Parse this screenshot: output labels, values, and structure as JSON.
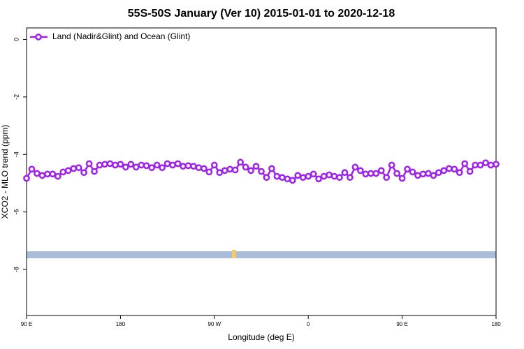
{
  "chart_data": {
    "type": "line",
    "title": "55S-50S January (Ver 10)   2015-01-01 to 2020-12-18",
    "xlabel": "Longitude (deg E)",
    "ylabel": "XCO2 - MLO trend (ppm)",
    "x": [
      90,
      95,
      100,
      105,
      110,
      115,
      120,
      125,
      130,
      135,
      140,
      145,
      150,
      155,
      160,
      165,
      170,
      175,
      180,
      185,
      190,
      195,
      200,
      205,
      210,
      215,
      220,
      225,
      230,
      235,
      240,
      245,
      250,
      255,
      260,
      265,
      270,
      275,
      280,
      285,
      290,
      295,
      300,
      305,
      310,
      315,
      320,
      325,
      330,
      335,
      340,
      345,
      350,
      355,
      360,
      365,
      370,
      375,
      380,
      385,
      390,
      395,
      400,
      405,
      410,
      415,
      420,
      425,
      430,
      435,
      440,
      445,
      450,
      455,
      460,
      465,
      470,
      475,
      480,
      485,
      490,
      495,
      500,
      505,
      510,
      515,
      520,
      525,
      530,
      535,
      540
    ],
    "series": [
      {
        "name": "Land (Nadir&Glint) and Ocean (Glint)",
        "color": "#a020f0",
        "values": [
          -4.83,
          -4.51,
          -4.66,
          -4.73,
          -4.68,
          -4.68,
          -4.76,
          -4.61,
          -4.56,
          -4.49,
          -4.46,
          -4.63,
          -4.32,
          -4.59,
          -4.37,
          -4.34,
          -4.32,
          -4.37,
          -4.34,
          -4.44,
          -4.34,
          -4.44,
          -4.37,
          -4.39,
          -4.46,
          -4.37,
          -4.46,
          -4.32,
          -4.37,
          -4.32,
          -4.41,
          -4.39,
          -4.41,
          -4.46,
          -4.49,
          -4.61,
          -4.37,
          -4.63,
          -4.56,
          -4.51,
          -4.54,
          -4.27,
          -4.44,
          -4.56,
          -4.41,
          -4.59,
          -4.8,
          -4.49,
          -4.76,
          -4.8,
          -4.85,
          -4.9,
          -4.73,
          -4.8,
          -4.76,
          -4.68,
          -4.85,
          -4.76,
          -4.71,
          -4.76,
          -4.8,
          -4.63,
          -4.8,
          -4.44,
          -4.56,
          -4.68,
          -4.66,
          -4.66,
          -4.56,
          -4.8,
          -4.37,
          -4.66,
          -4.83,
          -4.51,
          -4.61,
          -4.73,
          -4.68,
          -4.66,
          -4.73,
          -4.63,
          -4.56,
          -4.49,
          -4.51,
          -4.63,
          -4.32,
          -4.59,
          -4.37,
          -4.37,
          -4.29,
          -4.37,
          -4.34
        ]
      }
    ],
    "xlim": [
      90,
      540
    ],
    "xticks": [
      {
        "value": 90,
        "label": "90 E"
      },
      180,
      {
        "value": 270,
        "label": "90 W"
      },
      {
        "value": 360,
        "label": "0"
      },
      {
        "value": 450,
        "label": "90 E"
      },
      {
        "value": 540,
        "label": "180"
      }
    ],
    "ylim": [
      -9.6,
      0.4
    ],
    "yticks": [
      0,
      -2,
      -4,
      -6,
      -8
    ],
    "legend": "top-left"
  }
}
